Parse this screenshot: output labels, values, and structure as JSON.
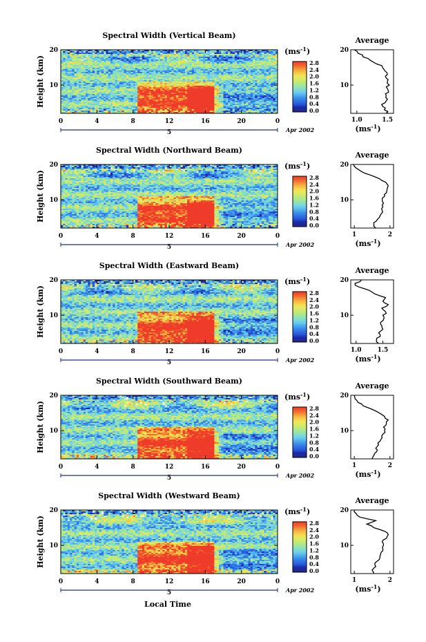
{
  "figure": {
    "xlabel_bottom": "Local Time",
    "day_label": "5",
    "date_label": "Apr 2002",
    "ylabel": "Height (km)",
    "unit_label": "(ms",
    "unit_sup": "-1",
    "unit_close": ")",
    "average_title": "Average",
    "colorbar_ticks": [
      "2.8",
      "2.4",
      "2.0",
      "1.6",
      "1.2",
      "0.8",
      "0.4",
      "0.0"
    ],
    "colors": {
      "blue_dark": "#1a2aa8",
      "blue": "#2f7de0",
      "cyan": "#6fd0ef",
      "green": "#a4e27a",
      "yellow": "#f2e657",
      "orange": "#f2a23c",
      "red": "#ee3b2a",
      "axis_blue": "#1f2a8c"
    }
  },
  "chart_data": [
    {
      "type": "heatmap",
      "title": "Spectral Width (Vertical Beam)",
      "xlabel": "",
      "ylabel": "Height (km)",
      "x_ticks": [
        "0",
        "4",
        "8",
        "12",
        "16",
        "20",
        "0"
      ],
      "xlim": [
        0,
        24
      ],
      "y_ticks": [
        "20",
        "10"
      ],
      "ylim": [
        2,
        20
      ],
      "colorbar": {
        "label": "(ms-1)",
        "range": [
          0.0,
          2.8
        ],
        "ticks": [
          0.0,
          0.4,
          0.8,
          1.2,
          1.6,
          2.0,
          2.4,
          2.8
        ]
      },
      "average_profile": {
        "title": "Average",
        "xlabel": "(ms-1)",
        "x_ticks": [
          "1.0",
          "1.5"
        ],
        "xlim": [
          0.9,
          1.6
        ],
        "height": [
          2,
          3,
          4,
          5,
          6,
          7,
          8,
          9,
          10,
          11,
          12,
          13,
          14,
          15,
          16,
          17,
          18,
          19,
          20
        ],
        "values": [
          1.48,
          1.45,
          1.42,
          1.46,
          1.5,
          1.48,
          1.52,
          1.5,
          1.53,
          1.5,
          1.48,
          1.5,
          1.46,
          1.42,
          1.32,
          1.22,
          1.1,
          1.02,
          0.96
        ]
      }
    },
    {
      "type": "heatmap",
      "title": "Spectral Width (Northward Beam)",
      "xlabel": "",
      "ylabel": "Height (km)",
      "x_ticks": [
        "0",
        "4",
        "8",
        "12",
        "16",
        "20",
        "0"
      ],
      "xlim": [
        0,
        24
      ],
      "y_ticks": [
        "20",
        "10"
      ],
      "ylim": [
        2,
        20
      ],
      "colorbar": {
        "label": "(ms-1)",
        "range": [
          0.0,
          2.8
        ],
        "ticks": [
          0.0,
          0.4,
          0.8,
          1.2,
          1.6,
          2.0,
          2.4,
          2.8
        ]
      },
      "average_profile": {
        "title": "Average",
        "xlabel": "(ms-1)",
        "x_ticks": [
          "1",
          "2"
        ],
        "xlim": [
          0.9,
          2.1
        ],
        "height": [
          2,
          3,
          4,
          5,
          6,
          7,
          8,
          9,
          10,
          11,
          12,
          13,
          14,
          15,
          16,
          17,
          18,
          19,
          20
        ],
        "values": [
          1.6,
          1.55,
          1.62,
          1.7,
          1.75,
          1.78,
          1.8,
          1.82,
          1.78,
          1.85,
          1.9,
          1.92,
          1.95,
          1.88,
          1.7,
          1.45,
          1.2,
          1.05,
          0.98
        ]
      }
    },
    {
      "type": "heatmap",
      "title": "Spectral Width (Eastward Beam)",
      "xlabel": "",
      "ylabel": "Height (km)",
      "x_ticks": [
        "0",
        "4",
        "8",
        "12",
        "16",
        "20",
        "0"
      ],
      "xlim": [
        0,
        24
      ],
      "y_ticks": [
        "20",
        "10"
      ],
      "ylim": [
        2,
        20
      ],
      "colorbar": {
        "label": "(ms-1)",
        "range": [
          0.0,
          2.8
        ],
        "ticks": [
          0.0,
          0.4,
          0.8,
          1.2,
          1.6,
          2.0,
          2.4,
          2.8
        ]
      },
      "average_profile": {
        "title": "Average",
        "xlabel": "(ms-1)",
        "x_ticks": [
          "1.0",
          "1.5"
        ],
        "xlim": [
          0.9,
          1.7
        ],
        "height": [
          2,
          3,
          4,
          5,
          6,
          7,
          8,
          9,
          10,
          11,
          12,
          13,
          14,
          15,
          16,
          17,
          18,
          19,
          20
        ],
        "values": [
          1.42,
          1.38,
          1.45,
          1.42,
          1.5,
          1.48,
          1.46,
          1.52,
          1.5,
          1.55,
          1.48,
          1.6,
          1.5,
          1.55,
          1.35,
          1.25,
          1.05,
          0.98,
          1.1
        ]
      }
    },
    {
      "type": "heatmap",
      "title": "Spectral Width (Southward Beam)",
      "xlabel": "",
      "ylabel": "Height (km)",
      "x_ticks": [
        "0",
        "4",
        "8",
        "12",
        "16",
        "20",
        "0"
      ],
      "xlim": [
        0,
        24
      ],
      "y_ticks": [
        "20",
        "10"
      ],
      "ylim": [
        2,
        20
      ],
      "colorbar": {
        "label": "(ms-1)",
        "range": [
          0.0,
          2.8
        ],
        "ticks": [
          0.0,
          0.4,
          0.8,
          1.2,
          1.6,
          2.0,
          2.4,
          2.8
        ]
      },
      "average_profile": {
        "title": "Average",
        "xlabel": "(ms-1)",
        "x_ticks": [
          "1",
          "2"
        ],
        "xlim": [
          0.9,
          2.1
        ],
        "height": [
          2,
          3,
          4,
          5,
          6,
          7,
          8,
          9,
          10,
          11,
          12,
          13,
          14,
          15,
          16,
          17,
          18,
          19,
          20
        ],
        "values": [
          1.5,
          1.55,
          1.62,
          1.6,
          1.68,
          1.72,
          1.78,
          1.8,
          1.85,
          1.82,
          1.9,
          1.95,
          1.85,
          1.7,
          1.5,
          1.25,
          1.1,
          1.02,
          1.0
        ]
      }
    },
    {
      "type": "heatmap",
      "title": "Spectral Width (Westward Beam)",
      "xlabel": "Local Time",
      "ylabel": "Height (km)",
      "x_ticks": [
        "0",
        "4",
        "8",
        "12",
        "16",
        "20",
        "0"
      ],
      "xlim": [
        0,
        24
      ],
      "y_ticks": [
        "20",
        "10"
      ],
      "ylim": [
        2,
        20
      ],
      "colorbar": {
        "label": "(ms-1)",
        "range": [
          0.0,
          2.8
        ],
        "ticks": [
          0.0,
          0.4,
          0.8,
          1.2,
          1.6,
          2.0,
          2.4,
          2.8
        ]
      },
      "average_profile": {
        "title": "Average",
        "xlabel": "(ms-1)",
        "x_ticks": [
          "1",
          "2"
        ],
        "xlim": [
          0.9,
          2.1
        ],
        "height": [
          2,
          3,
          4,
          5,
          6,
          7,
          8,
          9,
          10,
          11,
          12,
          13,
          14,
          15,
          16,
          17,
          18,
          19,
          20
        ],
        "values": [
          1.55,
          1.5,
          1.6,
          1.58,
          1.7,
          1.72,
          1.75,
          1.8,
          1.82,
          1.78,
          1.9,
          1.95,
          1.85,
          1.55,
          1.35,
          1.6,
          1.15,
          1.05,
          1.0
        ]
      }
    }
  ]
}
